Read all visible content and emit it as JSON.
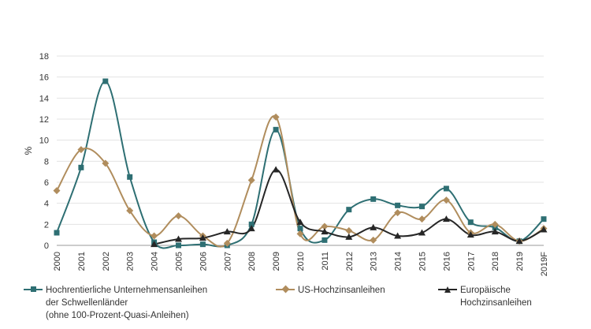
{
  "chart_data": {
    "type": "line",
    "ylabel": "%",
    "ylim": [
      0,
      18
    ],
    "yticks": [
      "0",
      "2",
      "4",
      "6",
      "8",
      "10",
      "12",
      "14",
      "16",
      "18"
    ],
    "categories": [
      "2000",
      "2001",
      "2002",
      "2003",
      "2004",
      "2005",
      "2006",
      "2007",
      "2008",
      "2009",
      "2010",
      "2011",
      "2012",
      "2013",
      "2014",
      "2015",
      "2016",
      "2017",
      "2018",
      "2019",
      "2019F"
    ],
    "grid": true,
    "legend_position": "bottom",
    "series": [
      {
        "name_lines": [
          "Hochrentierliche Unternehmensanleihen",
          "der Schwellenländer",
          "(ohne 100-Prozent-Quasi-Anleihen)"
        ],
        "color": "#2e6f73",
        "marker": "square",
        "values": [
          1.2,
          7.4,
          15.6,
          6.5,
          0.3,
          0.0,
          0.1,
          0.0,
          2.0,
          11.0,
          1.6,
          0.5,
          3.4,
          4.4,
          3.8,
          3.7,
          5.4,
          2.2,
          1.7,
          0.4,
          2.5
        ]
      },
      {
        "name_lines": [
          "US-Hochzinsanleihen"
        ],
        "color": "#b08d5d",
        "marker": "diamond",
        "values": [
          5.2,
          9.1,
          7.8,
          3.3,
          0.9,
          2.8,
          0.9,
          0.2,
          6.2,
          12.2,
          1.1,
          1.8,
          1.4,
          0.5,
          3.1,
          2.5,
          4.3,
          1.2,
          2.0,
          0.4,
          1.6
        ]
      },
      {
        "name_lines": [
          "Europäische",
          "Hochzinsanleihen"
        ],
        "color": "#262626",
        "marker": "triangle",
        "values": [
          null,
          null,
          null,
          null,
          0.1,
          0.6,
          0.7,
          1.3,
          1.6,
          7.2,
          2.2,
          1.3,
          0.8,
          1.7,
          0.9,
          1.2,
          2.5,
          1.0,
          1.3,
          0.4,
          1.5
        ]
      }
    ]
  }
}
